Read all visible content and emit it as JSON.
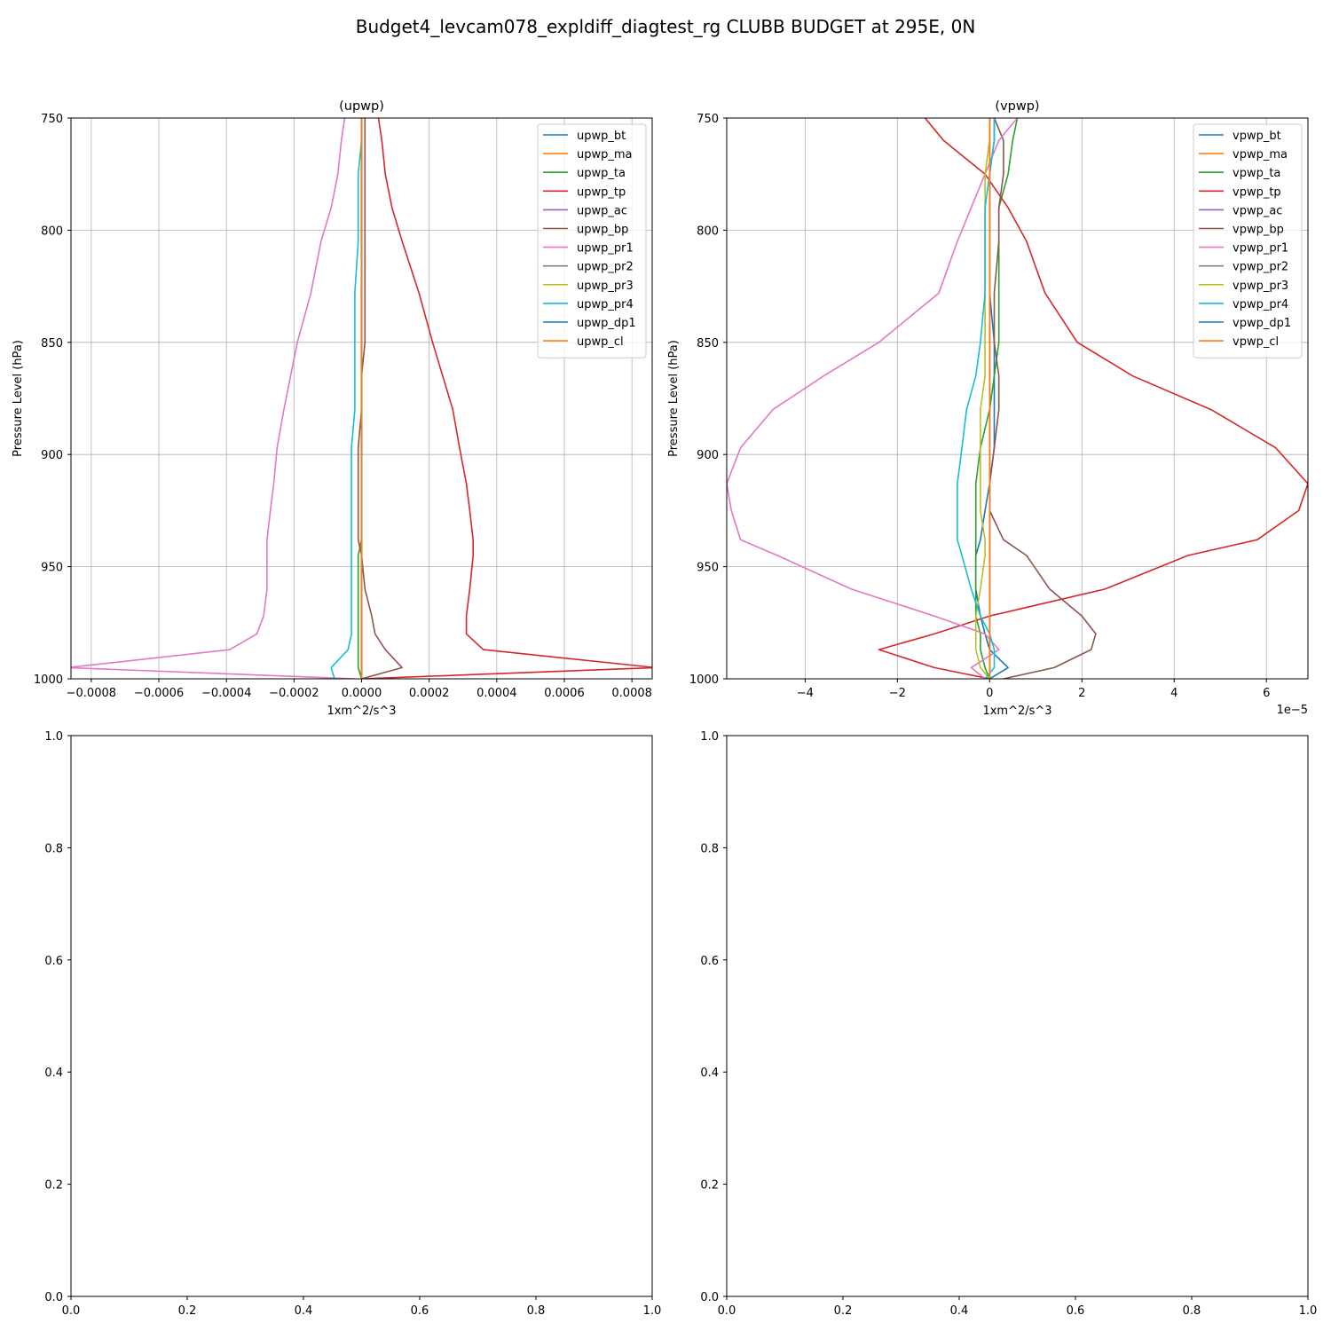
{
  "suptitle": "Budget4_levcam078_expldiff_diagtest_rg CLUBB BUDGET at 295E, 0N",
  "palette": [
    "#1f77b4",
    "#ff7f0e",
    "#2ca02c",
    "#d62728",
    "#9467bd",
    "#8c564b",
    "#e377c2",
    "#7f7f7f",
    "#bcbd22",
    "#17becf",
    "#1f77b4",
    "#ff7f0e"
  ],
  "chart_data": [
    {
      "type": "line",
      "title": "(upwp)",
      "xlabel": "1xm^2/s^3",
      "ylabel": "Pressure Level (hPa)",
      "xlim": [
        -0.00086,
        0.00086
      ],
      "ylim": [
        1000,
        750
      ],
      "xticks": [
        -0.0008,
        -0.0006,
        -0.0004,
        -0.0002,
        0,
        0.0002,
        0.0004,
        0.0006,
        0.0008
      ],
      "xticklabels": [
        "−0.0008",
        "−0.0006",
        "−0.0004",
        "−0.0002",
        "0.0000",
        "0.0002",
        "0.0004",
        "0.0006",
        "0.0008"
      ],
      "yticks": [
        750,
        800,
        850,
        900,
        950,
        1000
      ],
      "yticklabels": [
        "750",
        "800",
        "850",
        "900",
        "950",
        "1000"
      ],
      "offset_label": "",
      "grid": true,
      "legend_position": "upper right",
      "levels": [
        1000,
        995,
        987,
        980,
        972,
        960,
        945,
        938,
        925,
        913,
        897,
        880,
        865,
        850,
        828,
        805,
        790,
        775,
        760,
        750
      ],
      "series": [
        {
          "name": "upwp_bt",
          "values": [
            0,
            0,
            0,
            0,
            0,
            0,
            0,
            0,
            0,
            0,
            0,
            0,
            0,
            0,
            0,
            0,
            0,
            0,
            0,
            0
          ]
        },
        {
          "name": "upwp_ma",
          "values": [
            0,
            0,
            0,
            0,
            0,
            0,
            0,
            0,
            0,
            0,
            0,
            0,
            0,
            0,
            0,
            0,
            0,
            0,
            0,
            0
          ]
        },
        {
          "name": "upwp_ta",
          "values": [
            0,
            -1e-05,
            -1e-05,
            -1e-05,
            -1e-05,
            -1e-05,
            -1e-05,
            0,
            0,
            0,
            0,
            0,
            0,
            0,
            0,
            0,
            0,
            0,
            0,
            0
          ]
        },
        {
          "name": "upwp_tp",
          "values": [
            0,
            0.00087,
            0.00036,
            0.00031,
            0.00031,
            0.00032,
            0.00033,
            0.00033,
            0.00032,
            0.00031,
            0.00029,
            0.00027,
            0.00024,
            0.00021,
            0.00017,
            0.00012,
            9e-05,
            7e-05,
            6e-05,
            5e-05
          ]
        },
        {
          "name": "upwp_ac",
          "values": [
            0,
            0,
            0,
            0,
            0,
            0,
            0,
            0,
            0,
            0,
            0,
            0,
            0,
            0,
            0,
            0,
            0,
            0,
            0,
            0
          ]
        },
        {
          "name": "upwp_bp",
          "values": [
            0,
            0.00012,
            7e-05,
            4e-05,
            3e-05,
            1e-05,
            0,
            -1e-05,
            -1e-05,
            -1e-05,
            -1e-05,
            0,
            0,
            1e-05,
            1e-05,
            1e-05,
            1e-05,
            1e-05,
            1e-05,
            1e-05
          ]
        },
        {
          "name": "upwp_pr1",
          "values": [
            -2e-05,
            -0.00087,
            -0.00039,
            -0.00031,
            -0.00029,
            -0.00028,
            -0.00028,
            -0.00028,
            -0.00027,
            -0.00026,
            -0.00025,
            -0.00023,
            -0.00021,
            -0.00019,
            -0.00015,
            -0.00012,
            -9e-05,
            -7e-05,
            -6e-05,
            -5e-05
          ]
        },
        {
          "name": "upwp_pr2",
          "values": [
            0,
            0,
            0,
            0,
            0,
            0,
            0,
            0,
            0,
            0,
            0,
            0,
            0,
            0,
            0,
            0,
            0,
            0,
            0,
            0
          ]
        },
        {
          "name": "upwp_pr3",
          "values": [
            0,
            0,
            0,
            0,
            0,
            0,
            0,
            0,
            0,
            0,
            0,
            0,
            0,
            0,
            0,
            0,
            0,
            0,
            0,
            0
          ]
        },
        {
          "name": "upwp_pr4",
          "values": [
            -8e-05,
            -9e-05,
            -4e-05,
            -3e-05,
            -3e-05,
            -3e-05,
            -3e-05,
            -3e-05,
            -3e-05,
            -3e-05,
            -3e-05,
            -2e-05,
            -2e-05,
            -2e-05,
            -2e-05,
            -1e-05,
            -1e-05,
            -1e-05,
            0,
            0
          ]
        },
        {
          "name": "upwp_dp1",
          "values": [
            0,
            0,
            0,
            0,
            0,
            0,
            0,
            0,
            0,
            0,
            0,
            0,
            0,
            0,
            0,
            0,
            0,
            0,
            0,
            0
          ]
        },
        {
          "name": "upwp_cl",
          "values": [
            0,
            0,
            0,
            0,
            0,
            0,
            0,
            0,
            0,
            0,
            0,
            0,
            0,
            0,
            0,
            0,
            0,
            0,
            0,
            0
          ]
        }
      ]
    },
    {
      "type": "line",
      "title": "(vpwp)",
      "xlabel": "1xm^2/s^3",
      "ylabel": "Pressure Level (hPa)",
      "xlim": [
        -5.7e-05,
        6.9e-05
      ],
      "ylim": [
        1000,
        750
      ],
      "xticks": [
        -4e-05,
        -2e-05,
        0,
        2e-05,
        4e-05,
        6e-05
      ],
      "xticklabels": [
        "−4",
        "−2",
        "0",
        "2",
        "4",
        "6"
      ],
      "yticks": [
        750,
        800,
        850,
        900,
        950,
        1000
      ],
      "yticklabels": [
        "750",
        "800",
        "850",
        "900",
        "950",
        "1000"
      ],
      "offset_label": "1e−5",
      "grid": true,
      "legend_position": "upper right",
      "levels": [
        1000,
        995,
        987,
        980,
        972,
        960,
        945,
        938,
        925,
        913,
        897,
        880,
        865,
        850,
        828,
        805,
        790,
        775,
        760,
        750
      ],
      "series": [
        {
          "name": "vpwp_bt",
          "values": [
            0,
            4e-06,
            0,
            -1e-06,
            -2e-06,
            -3e-06,
            -3e-06,
            -2e-06,
            -1e-06,
            0,
            1e-06,
            1e-06,
            1e-06,
            1e-06,
            0,
            0,
            0,
            0,
            1e-06,
            1e-06
          ]
        },
        {
          "name": "vpwp_ma",
          "values": [
            0,
            0,
            0,
            0,
            0,
            0,
            0,
            0,
            0,
            0,
            0,
            0,
            0,
            0,
            0,
            0,
            0,
            0,
            0,
            0
          ]
        },
        {
          "name": "vpwp_ta",
          "values": [
            0,
            -1e-06,
            -2e-06,
            -2e-06,
            -3e-06,
            -3e-06,
            -3e-06,
            -3e-06,
            -3e-06,
            -3e-06,
            -2e-06,
            0,
            1e-06,
            2e-06,
            2e-06,
            2e-06,
            2e-06,
            4e-06,
            5e-06,
            6e-06
          ]
        },
        {
          "name": "vpwp_tp",
          "values": [
            0,
            -1.2e-05,
            -2.4e-05,
            -1.2e-05,
            0,
            2.5e-05,
            4.3e-05,
            5.8e-05,
            6.7e-05,
            6.9e-05,
            6.2e-05,
            4.8e-05,
            3.1e-05,
            1.9e-05,
            1.2e-05,
            8e-06,
            4e-06,
            -1e-06,
            -1e-05,
            -1.4e-05
          ]
        },
        {
          "name": "vpwp_ac",
          "values": [
            0,
            0,
            0,
            0,
            0,
            0,
            0,
            0,
            0,
            0,
            0,
            0,
            0,
            0,
            0,
            0,
            0,
            0,
            0,
            0
          ]
        },
        {
          "name": "vpwp_bp",
          "values": [
            3e-06,
            1.4e-05,
            2.2e-05,
            2.3e-05,
            2e-05,
            1.3e-05,
            8e-06,
            3e-06,
            0,
            0,
            1e-06,
            2e-06,
            2e-06,
            1e-06,
            1e-06,
            2e-06,
            2e-06,
            3e-06,
            3e-06,
            1e-06
          ]
        },
        {
          "name": "vpwp_pr1",
          "values": [
            -1e-06,
            -4e-06,
            2e-06,
            -1e-06,
            -1.2e-05,
            -3e-05,
            -4.6e-05,
            -5.4e-05,
            -5.6e-05,
            -5.7e-05,
            -5.4e-05,
            -4.7e-05,
            -3.6e-05,
            -2.4e-05,
            -1.1e-05,
            -7e-06,
            -4e-06,
            -1e-06,
            2e-06,
            6e-06
          ]
        },
        {
          "name": "vpwp_pr2",
          "values": [
            0,
            0,
            0,
            0,
            0,
            0,
            0,
            0,
            0,
            0,
            0,
            0,
            0,
            0,
            0,
            0,
            0,
            0,
            0,
            0
          ]
        },
        {
          "name": "vpwp_pr3",
          "values": [
            0,
            -2e-06,
            -3e-06,
            -3e-06,
            -3e-06,
            -2e-06,
            -1e-06,
            -1e-06,
            -2e-06,
            -2e-06,
            -2e-06,
            -2e-06,
            -1e-06,
            -1e-06,
            -1e-06,
            -1e-06,
            -1e-06,
            -1e-06,
            0,
            0
          ]
        },
        {
          "name": "vpwp_pr4",
          "values": [
            -1e-06,
            1e-06,
            1e-06,
            0,
            -2e-06,
            -4e-06,
            -6e-06,
            -7e-06,
            -7e-06,
            -7e-06,
            -6e-06,
            -5e-06,
            -3e-06,
            -2e-06,
            -1e-06,
            -1e-06,
            -1e-06,
            0,
            1e-06,
            1e-06
          ]
        },
        {
          "name": "vpwp_dp1",
          "values": [
            0,
            0,
            0,
            0,
            0,
            0,
            0,
            0,
            0,
            0,
            0,
            0,
            0,
            0,
            0,
            0,
            0,
            0,
            0,
            0
          ]
        },
        {
          "name": "vpwp_cl",
          "values": [
            0,
            0,
            0,
            0,
            0,
            0,
            0,
            0,
            0,
            0,
            0,
            0,
            0,
            0,
            0,
            0,
            0,
            0,
            0,
            0
          ]
        }
      ]
    },
    {
      "type": "line",
      "title": "",
      "xlabel": "",
      "ylabel": "",
      "xlim": [
        0,
        1
      ],
      "ylim": [
        0,
        1
      ],
      "xticks": [
        0,
        0.2,
        0.4,
        0.6,
        0.8,
        1
      ],
      "xticklabels": [
        "0.0",
        "0.2",
        "0.4",
        "0.6",
        "0.8",
        "1.0"
      ],
      "yticks": [
        0,
        0.2,
        0.4,
        0.6,
        0.8,
        1
      ],
      "yticklabels": [
        "0.0",
        "0.2",
        "0.4",
        "0.6",
        "0.8",
        "1.0"
      ],
      "offset_label": "",
      "grid": false,
      "series": []
    },
    {
      "type": "line",
      "title": "",
      "xlabel": "",
      "ylabel": "",
      "xlim": [
        0,
        1
      ],
      "ylim": [
        0,
        1
      ],
      "xticks": [
        0,
        0.2,
        0.4,
        0.6,
        0.8,
        1
      ],
      "xticklabels": [
        "0.0",
        "0.2",
        "0.4",
        "0.6",
        "0.8",
        "1.0"
      ],
      "yticks": [
        0,
        0.2,
        0.4,
        0.6,
        0.8,
        1
      ],
      "yticklabels": [
        "0.0",
        "0.2",
        "0.4",
        "0.6",
        "0.8",
        "1.0"
      ],
      "offset_label": "",
      "grid": false,
      "series": []
    }
  ]
}
